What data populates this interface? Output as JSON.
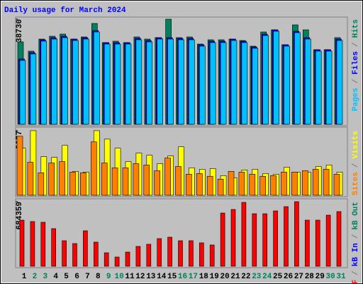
{
  "title": "Daily usage for March 2024",
  "separator": "/",
  "chart_data": [
    {
      "type": "bar",
      "series": [
        {
          "name": "Hits",
          "color": "#00805c",
          "values": [
            30360,
            26950,
            31400,
            32450,
            33240,
            31400,
            32190,
            37160,
            30100,
            30620,
            30100,
            32190,
            31400,
            31930,
            38730,
            31930,
            32190,
            29570,
            31140,
            31140,
            31400,
            30880,
            28790,
            34020,
            34810,
            29310,
            36640,
            34810,
            27480,
            27480,
            31930
          ]
        },
        {
          "name": "Files",
          "color": "#0000ff",
          "values": [
            24070,
            26430,
            31140,
            31920,
            32450,
            31400,
            31920,
            34540,
            30090,
            30090,
            30090,
            31660,
            30880,
            31920,
            31920,
            31660,
            31660,
            29310,
            30620,
            30620,
            31400,
            30620,
            28520,
            33230,
            34800,
            29310,
            34280,
            31920,
            27480,
            27480,
            31400
          ]
        },
        {
          "name": "Pages",
          "color": "#00c0ff",
          "values": [
            23550,
            25910,
            30620,
            31400,
            31930,
            30880,
            31400,
            34020,
            29570,
            29570,
            29570,
            31140,
            30360,
            31400,
            31400,
            31140,
            31140,
            28790,
            30100,
            30100,
            30880,
            30100,
            28000,
            32710,
            34280,
            28790,
            33760,
            31400,
            26960,
            26960,
            30880
          ]
        }
      ],
      "ylim": [
        0,
        38730
      ],
      "yticks": [
        38730
      ]
    },
    {
      "type": "bar",
      "series": [
        {
          "name": "Visits",
          "color": "#ffff00",
          "values": [
            1513,
            2077,
            1242,
            1219,
            1603,
            768,
            745,
            2077,
            1806,
            1513,
            1084,
            1355,
            1287,
            1016,
            1264,
            1558,
            881,
            835,
            858,
            632,
            565,
            813,
            835,
            700,
            677,
            903,
            745,
            745,
            926,
            971,
            745
          ]
        },
        {
          "name": "Sites",
          "color": "#ff8000",
          "values": [
            1897,
            1061,
            723,
            1039,
            1084,
            745,
            723,
            1716,
            1039,
            881,
            881,
            1016,
            971,
            790,
            1197,
            926,
            677,
            700,
            610,
            519,
            768,
            745,
            677,
            610,
            632,
            745,
            745,
            790,
            835,
            835,
            677
          ]
        }
      ],
      "ylim": [
        0,
        2077
      ],
      "yticks": [
        2077
      ]
    },
    {
      "type": "bar",
      "series": [
        {
          "name": "kB F",
          "color": "#ff0000",
          "values": [
            488800,
            473760,
            466240,
            398560,
            270720,
            240640,
            376000,
            255680,
            142880,
            97760,
            150400,
            210560,
            233120,
            293280,
            308320,
            270720,
            270720,
            248160,
            225600,
            564000,
            601600,
            676800,
            556480,
            556480,
            586560,
            631680,
            684359,
            488800,
            488800,
            541440,
            579040
          ]
        }
      ],
      "legend_extra": [
        {
          "name": "kB In",
          "color": "#0000ff"
        },
        {
          "name": "kB Out",
          "color": "#00805c"
        }
      ],
      "ylim": [
        0,
        684359
      ],
      "yticks": [
        684359
      ],
      "categories": [
        "1",
        "2",
        "3",
        "4",
        "5",
        "6",
        "7",
        "8",
        "9",
        "10",
        "11",
        "12",
        "13",
        "14",
        "15",
        "16",
        "17",
        "18",
        "19",
        "20",
        "21",
        "22",
        "23",
        "24",
        "25",
        "26",
        "27",
        "28",
        "29",
        "30",
        "31"
      ],
      "category_colors": [
        "#000000",
        "#00805c",
        "#00805c",
        "#000000",
        "#000000",
        "#000000",
        "#000000",
        "#000000",
        "#00805c",
        "#00805c",
        "#000000",
        "#000000",
        "#000000",
        "#000000",
        "#000000",
        "#00805c",
        "#00805c",
        "#000000",
        "#000000",
        "#000000",
        "#000000",
        "#000000",
        "#00805c",
        "#00805c",
        "#000000",
        "#000000",
        "#000000",
        "#000000",
        "#000000",
        "#00805c",
        "#00805c"
      ]
    }
  ]
}
